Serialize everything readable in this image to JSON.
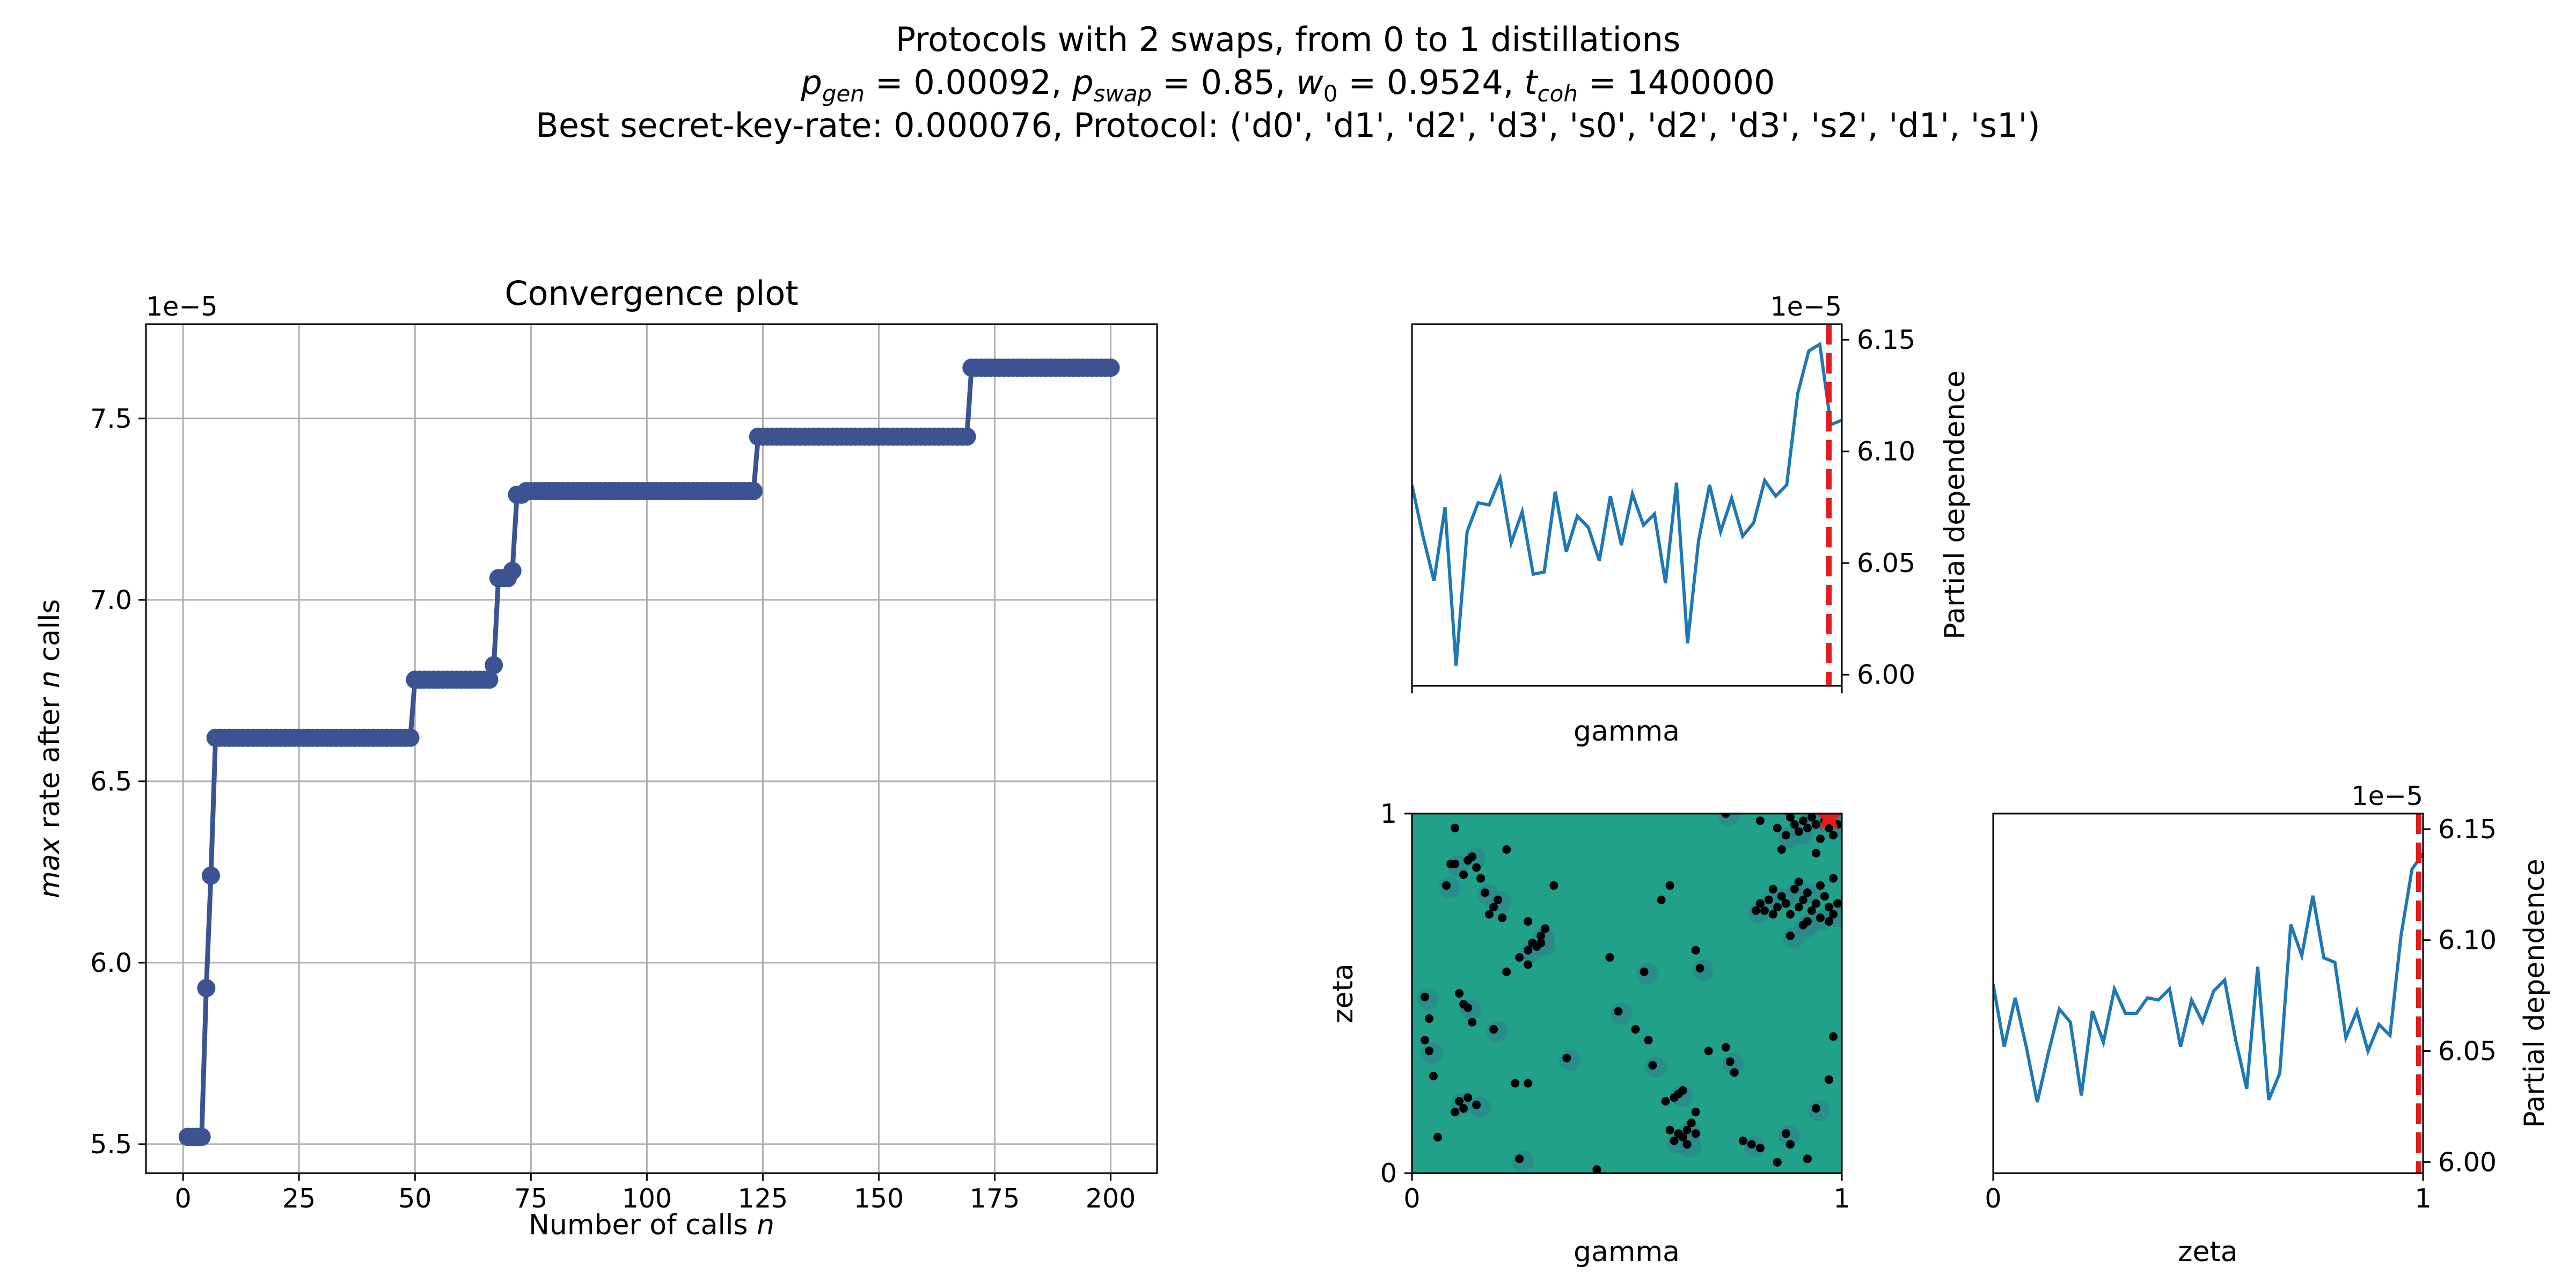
{
  "figure": {
    "title_line1": "Protocols with 2 swaps, from 0 to 1 distillations",
    "title_line2": {
      "p_gen_value": "0.00092",
      "p_swap_value": "0.85",
      "w0_value": "0.9524",
      "t_coh_value": "1400000"
    },
    "title_line3": "Best secret-key-rate: 0.000076, Protocol: ('d0', 'd1', 'd2', 'd3', 's0', 'd2', 'd3', 's2', 'd1', 's1')"
  },
  "colors": {
    "convergence_line": "#3b5390",
    "pd_line": "#1f77b4",
    "best_marker": "#e41a1c",
    "heatmap_bg": "#21a08a",
    "heatmap_blob": "#2f7f8e",
    "points": "#000000",
    "grid": "#b0b0b0"
  },
  "chart_data": [
    {
      "type": "line",
      "name": "convergence",
      "title": "Convergence plot",
      "xlabel_prefix": "Number of calls ",
      "xlabel_var": "n",
      "ylabel_var1": "max",
      "ylabel_mid": " rate after ",
      "ylabel_var2": "n",
      "ylabel_suffix": " calls",
      "offset_text": "1e−5",
      "xlim": [
        -8,
        210
      ],
      "ylim": [
        5.42,
        7.76
      ],
      "xticks": [
        0,
        25,
        50,
        75,
        100,
        125,
        150,
        175,
        200
      ],
      "yticks": [
        5.5,
        6.0,
        6.5,
        7.0,
        7.5
      ],
      "ytick_labels": [
        "5.5",
        "6.0",
        "6.5",
        "7.0",
        "7.5"
      ],
      "grid": true,
      "marker": "circle",
      "steps": [
        [
          1,
          5.52
        ],
        [
          5,
          5.93
        ],
        [
          6,
          6.24
        ],
        [
          7,
          6.62
        ],
        [
          50,
          6.78
        ],
        [
          67,
          6.82
        ],
        [
          68,
          7.06
        ],
        [
          71,
          7.08
        ],
        [
          72,
          7.29
        ],
        [
          74,
          7.3
        ],
        [
          124,
          7.45
        ],
        [
          170,
          7.64
        ]
      ],
      "n_calls": 200
    },
    {
      "type": "line",
      "name": "partial-dependence-gamma",
      "xlabel": "gamma",
      "ylabel": "Partial dependence",
      "offset_text": "1e−5",
      "xlim": [
        0,
        1
      ],
      "ylim": [
        5.995,
        6.157
      ],
      "yticks": [
        6.0,
        6.05,
        6.1,
        6.15
      ],
      "ytick_labels": [
        "6.00",
        "6.05",
        "6.10",
        "6.15"
      ],
      "best_value": 0.97,
      "y": [
        6.085,
        6.062,
        6.042,
        6.075,
        6.004,
        6.064,
        6.077,
        6.076,
        6.088,
        6.059,
        6.073,
        6.045,
        6.046,
        6.082,
        6.055,
        6.071,
        6.066,
        6.051,
        6.08,
        6.058,
        6.081,
        6.067,
        6.072,
        6.041,
        6.086,
        6.014,
        6.06,
        6.085,
        6.064,
        6.079,
        6.062,
        6.068,
        6.087,
        6.08,
        6.085,
        6.126,
        6.145,
        6.148,
        6.112,
        6.114
      ]
    },
    {
      "type": "scatter",
      "name": "pair-gamma-zeta",
      "xlabel": "gamma",
      "ylabel": "zeta",
      "xlim": [
        0,
        1
      ],
      "ylim": [
        0,
        1
      ],
      "xtick_labels": [
        "0",
        "1"
      ],
      "ytick_labels": [
        "0",
        "1"
      ],
      "best": [
        0.97,
        0.99
      ],
      "points": [
        [
          0.03,
          0.49
        ],
        [
          0.04,
          0.43
        ],
        [
          0.03,
          0.37
        ],
        [
          0.04,
          0.34
        ],
        [
          0.05,
          0.27
        ],
        [
          0.06,
          0.1
        ],
        [
          0.08,
          0.8
        ],
        [
          0.09,
          0.86
        ],
        [
          0.1,
          0.96
        ],
        [
          0.1,
          0.86
        ],
        [
          0.11,
          0.5
        ],
        [
          0.12,
          0.47
        ],
        [
          0.13,
          0.46
        ],
        [
          0.12,
          0.83
        ],
        [
          0.13,
          0.87
        ],
        [
          0.14,
          0.88
        ],
        [
          0.15,
          0.85
        ],
        [
          0.16,
          0.82
        ],
        [
          0.17,
          0.78
        ],
        [
          0.18,
          0.72
        ],
        [
          0.19,
          0.74
        ],
        [
          0.2,
          0.76
        ],
        [
          0.21,
          0.71
        ],
        [
          0.22,
          0.9
        ],
        [
          0.11,
          0.2
        ],
        [
          0.12,
          0.18
        ],
        [
          0.13,
          0.21
        ],
        [
          0.15,
          0.19
        ],
        [
          0.1,
          0.17
        ],
        [
          0.14,
          0.42
        ],
        [
          0.19,
          0.4
        ],
        [
          0.22,
          0.56
        ],
        [
          0.25,
          0.6
        ],
        [
          0.27,
          0.62
        ],
        [
          0.28,
          0.64
        ],
        [
          0.29,
          0.63
        ],
        [
          0.3,
          0.66
        ],
        [
          0.27,
          0.7
        ],
        [
          0.31,
          0.68
        ],
        [
          0.3,
          0.64
        ],
        [
          0.27,
          0.58
        ],
        [
          0.33,
          0.8
        ],
        [
          0.36,
          0.32
        ],
        [
          0.24,
          0.25
        ],
        [
          0.27,
          0.25
        ],
        [
          0.25,
          0.04
        ],
        [
          0.43,
          0.01
        ],
        [
          0.46,
          0.6
        ],
        [
          0.48,
          0.45
        ],
        [
          0.52,
          0.4
        ],
        [
          0.55,
          0.37
        ],
        [
          0.56,
          0.3
        ],
        [
          0.58,
          0.76
        ],
        [
          0.6,
          0.8
        ],
        [
          0.54,
          0.56
        ],
        [
          0.59,
          0.2
        ],
        [
          0.61,
          0.21
        ],
        [
          0.62,
          0.22
        ],
        [
          0.63,
          0.23
        ],
        [
          0.6,
          0.12
        ],
        [
          0.61,
          0.09
        ],
        [
          0.62,
          0.11
        ],
        [
          0.63,
          0.1
        ],
        [
          0.64,
          0.12
        ],
        [
          0.65,
          0.14
        ],
        [
          0.66,
          0.11
        ],
        [
          0.64,
          0.08
        ],
        [
          0.66,
          0.17
        ],
        [
          0.66,
          0.62
        ],
        [
          0.67,
          0.57
        ],
        [
          0.69,
          0.34
        ],
        [
          0.73,
          0.35
        ],
        [
          0.74,
          0.31
        ],
        [
          0.75,
          0.28
        ],
        [
          0.77,
          0.09
        ],
        [
          0.79,
          0.08
        ],
        [
          0.81,
          0.07
        ],
        [
          0.85,
          0.03
        ],
        [
          0.87,
          0.11
        ],
        [
          0.88,
          0.08
        ],
        [
          0.92,
          0.04
        ],
        [
          0.94,
          0.18
        ],
        [
          0.97,
          0.26
        ],
        [
          0.98,
          0.38
        ],
        [
          0.73,
          1.0
        ],
        [
          0.81,
          0.98
        ],
        [
          0.85,
          0.96
        ],
        [
          0.87,
          0.94
        ],
        [
          0.88,
          0.99
        ],
        [
          0.89,
          0.97
        ],
        [
          0.9,
          0.95
        ],
        [
          0.91,
          0.98
        ],
        [
          0.92,
          0.96
        ],
        [
          0.93,
          0.99
        ],
        [
          0.94,
          0.97
        ],
        [
          0.95,
          0.93
        ],
        [
          0.96,
          0.98
        ],
        [
          0.97,
          0.96
        ],
        [
          0.98,
          0.94
        ],
        [
          0.99,
          0.97
        ],
        [
          0.86,
          0.9
        ],
        [
          0.94,
          0.89
        ],
        [
          0.8,
          0.73
        ],
        [
          0.81,
          0.75
        ],
        [
          0.82,
          0.73
        ],
        [
          0.83,
          0.76
        ],
        [
          0.84,
          0.72
        ],
        [
          0.85,
          0.74
        ],
        [
          0.86,
          0.77
        ],
        [
          0.87,
          0.75
        ],
        [
          0.88,
          0.72
        ],
        [
          0.89,
          0.79
        ],
        [
          0.9,
          0.74
        ],
        [
          0.91,
          0.76
        ],
        [
          0.92,
          0.78
        ],
        [
          0.93,
          0.73
        ],
        [
          0.94,
          0.75
        ],
        [
          0.95,
          0.71
        ],
        [
          0.96,
          0.77
        ],
        [
          0.97,
          0.74
        ],
        [
          0.98,
          0.72
        ],
        [
          0.99,
          0.75
        ],
        [
          0.9,
          0.81
        ],
        [
          0.92,
          0.7
        ],
        [
          0.95,
          0.8
        ],
        [
          0.97,
          0.7
        ],
        [
          0.88,
          0.66
        ],
        [
          0.98,
          0.82
        ],
        [
          0.84,
          0.79
        ],
        [
          0.91,
          0.69
        ]
      ]
    },
    {
      "type": "line",
      "name": "partial-dependence-zeta",
      "xlabel": "zeta",
      "ylabel": "Partial dependence",
      "offset_text": "1e−5",
      "xlim": [
        0,
        1
      ],
      "ylim": [
        5.995,
        6.157
      ],
      "xtick_labels": [
        "0",
        "1"
      ],
      "yticks": [
        6.0,
        6.05,
        6.1,
        6.15
      ],
      "ytick_labels": [
        "6.00",
        "6.05",
        "6.10",
        "6.15"
      ],
      "best_value": 0.99,
      "y": [
        6.08,
        6.052,
        6.074,
        6.052,
        6.027,
        6.049,
        6.069,
        6.063,
        6.03,
        6.068,
        6.054,
        6.078,
        6.067,
        6.067,
        6.074,
        6.073,
        6.078,
        6.052,
        6.073,
        6.063,
        6.077,
        6.082,
        6.055,
        6.033,
        6.088,
        6.028,
        6.04,
        6.107,
        6.093,
        6.12,
        6.092,
        6.09,
        6.056,
        6.068,
        6.05,
        6.062,
        6.057,
        6.102,
        6.132,
        6.139
      ]
    }
  ]
}
